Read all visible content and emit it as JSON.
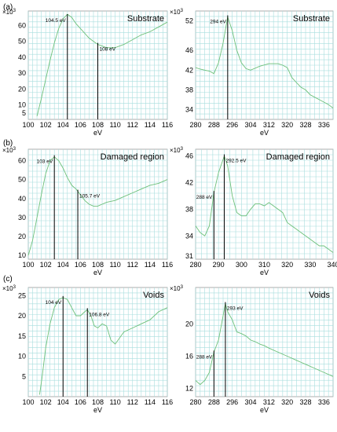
{
  "rows": [
    {
      "label": "(a)"
    },
    {
      "label": "(b)"
    },
    {
      "label": "(c)"
    }
  ],
  "chart_data": [
    {
      "type": "line",
      "row": 0,
      "col": 0,
      "title": "Substrate",
      "xlabel": "eV",
      "multiplier": "×10",
      "mult_exp": "3",
      "xlim": [
        100,
        116
      ],
      "ylim": [
        1,
        69
      ],
      "xticks": [
        100,
        102,
        104,
        106,
        108,
        110,
        112,
        114,
        116
      ],
      "yticks": [
        5,
        10,
        20,
        30,
        40,
        50,
        60
      ],
      "series": [
        {
          "x": [
            101.0,
            101.5,
            102.0,
            102.5,
            103.0,
            103.5,
            104.0,
            104.5,
            105.0,
            105.5,
            106.0,
            106.5,
            107.0,
            107.5,
            108.0,
            108.5,
            109.0,
            109.5,
            110.0,
            111.0,
            112.0,
            113.0,
            114.0,
            115.0,
            116.0
          ],
          "y": [
            3,
            14,
            26,
            38,
            49,
            58,
            64,
            67,
            65,
            61,
            58,
            55,
            52,
            50,
            48,
            47,
            46,
            46,
            46,
            48,
            51,
            54,
            56,
            59,
            62
          ]
        }
      ],
      "annotations": [
        {
          "x": 104.5,
          "label": "104.5 eV"
        },
        {
          "x": 108.0,
          "label": "108 eV"
        }
      ]
    },
    {
      "type": "line",
      "row": 0,
      "col": 1,
      "title": "Substrate",
      "xlabel": "eV",
      "multiplier": "×10",
      "mult_exp": "3",
      "xlim": [
        280,
        340
      ],
      "ylim": [
        32,
        54
      ],
      "xticks": [
        280,
        288,
        296,
        304,
        312,
        320,
        328,
        336
      ],
      "yticks": [
        34,
        38,
        42,
        46,
        52
      ],
      "series": [
        {
          "x": [
            280,
            282,
            284,
            286,
            288,
            290,
            292,
            294,
            296,
            298,
            300,
            302,
            304,
            308,
            312,
            316,
            318,
            320,
            322,
            324,
            326,
            328,
            330,
            332,
            334,
            336,
            338,
            340
          ],
          "y": [
            42.5,
            42.2,
            42.0,
            41.8,
            41.3,
            43.5,
            47.5,
            52.8,
            50.0,
            46.0,
            43.5,
            42.3,
            42.0,
            42.8,
            43.3,
            43.3,
            43.0,
            42.5,
            40.5,
            39.5,
            38.5,
            38.0,
            37.0,
            36.5,
            36.0,
            35.5,
            35.0,
            34.3
          ]
        }
      ],
      "annotations": [
        {
          "x": 294,
          "label": "294 eV"
        }
      ]
    },
    {
      "type": "line",
      "row": 1,
      "col": 0,
      "title": "Damaged region",
      "xlabel": "eV",
      "multiplier": "×10",
      "mult_exp": "3",
      "xlim": [
        100,
        116
      ],
      "ylim": [
        8,
        66
      ],
      "xticks": [
        100,
        102,
        104,
        106,
        108,
        110,
        112,
        114,
        116
      ],
      "yticks": [
        10,
        20,
        30,
        40,
        50,
        60
      ],
      "series": [
        {
          "x": [
            100.0,
            100.5,
            101.0,
            101.5,
            102.0,
            102.5,
            103.0,
            103.5,
            104.0,
            104.5,
            105.0,
            105.5,
            106.0,
            106.5,
            107.0,
            107.5,
            108.0,
            108.5,
            109.0,
            110.0,
            111.0,
            112.0,
            113.0,
            114.0,
            115.0,
            116.0
          ],
          "y": [
            10,
            18,
            30,
            42,
            53,
            60,
            62,
            60,
            56,
            51,
            47,
            45,
            42,
            39,
            37,
            36,
            36,
            37,
            38,
            39,
            41,
            43,
            45,
            47,
            48,
            50
          ]
        }
      ],
      "annotations": [
        {
          "x": 103.0,
          "label": "103 eV"
        },
        {
          "x": 105.7,
          "label": "105.7 eV"
        }
      ]
    },
    {
      "type": "line",
      "row": 1,
      "col": 1,
      "title": "Damaged region",
      "xlabel": "eV",
      "multiplier": "×10",
      "mult_exp": "3",
      "xlim": [
        280,
        340
      ],
      "ylim": [
        30.5,
        47
      ],
      "xticks": [
        280,
        290,
        300,
        310,
        320,
        330,
        340
      ],
      "yticks": [
        31,
        34,
        38,
        42,
        46
      ],
      "series": [
        {
          "x": [
            280,
            282,
            284,
            286,
            288,
            290,
            292.5,
            294,
            296,
            298,
            300,
            302,
            304,
            306,
            308,
            310,
            312,
            314,
            316,
            318,
            320,
            322,
            324,
            326,
            328,
            330,
            332,
            334,
            336,
            338,
            340
          ],
          "y": [
            35.5,
            34.5,
            34.0,
            35.5,
            40.5,
            43.5,
            46.0,
            44.5,
            40.0,
            37.5,
            37.0,
            37.0,
            38.0,
            38.8,
            38.8,
            38.5,
            39.0,
            38.5,
            38.0,
            37.5,
            36.0,
            35.5,
            35.0,
            34.5,
            34.0,
            33.5,
            33.0,
            32.5,
            32.5,
            32.0,
            31.5
          ]
        }
      ],
      "annotations": [
        {
          "x": 288,
          "label": "288 eV"
        },
        {
          "x": 292.5,
          "label": "292.5 eV"
        }
      ]
    },
    {
      "type": "line",
      "row": 2,
      "col": 0,
      "title": "Voids",
      "xlabel": "eV",
      "multiplier": "×10",
      "mult_exp": "3",
      "xlim": [
        100,
        116
      ],
      "ylim": [
        0,
        27
      ],
      "xticks": [
        100,
        102,
        104,
        106,
        108,
        110,
        112,
        114,
        116
      ],
      "yticks": [
        5,
        10,
        15,
        20,
        25
      ],
      "series": [
        {
          "x": [
            101.3,
            101.6,
            102.0,
            102.5,
            103.0,
            103.5,
            104.0,
            104.5,
            105.0,
            105.5,
            106.0,
            106.5,
            106.8,
            107.2,
            107.6,
            108.0,
            108.5,
            109.0,
            109.5,
            110.0,
            111.0,
            112.0,
            113.0,
            114.0,
            115.0,
            116.0
          ],
          "y": [
            0.5,
            5,
            12,
            18,
            22,
            24,
            24.5,
            24,
            22,
            20,
            20,
            21,
            21.5,
            20,
            17.5,
            17,
            18,
            17.5,
            14,
            13,
            16,
            17,
            18,
            19,
            21,
            22
          ]
        }
      ],
      "annotations": [
        {
          "x": 104.0,
          "label": "104 eV"
        },
        {
          "x": 106.8,
          "label": "106.8 eV"
        }
      ]
    },
    {
      "type": "line",
      "row": 2,
      "col": 1,
      "title": "Voids",
      "xlabel": "eV",
      "multiplier": "×10",
      "mult_exp": "3",
      "xlim": [
        280,
        340
      ],
      "ylim": [
        11,
        24.5
      ],
      "xticks": [
        280,
        288,
        296,
        304,
        312,
        320,
        328,
        336
      ],
      "yticks": [
        12,
        16,
        20
      ],
      "series": [
        {
          "x": [
            280,
            282,
            284,
            286,
            288,
            290,
            292,
            293,
            294,
            296,
            298,
            300,
            302,
            304,
            306,
            308,
            310,
            312,
            316,
            320,
            324,
            328,
            332,
            336,
            340
          ],
          "y": [
            13.0,
            12.5,
            13.0,
            14.0,
            16.5,
            18.0,
            21.0,
            22.5,
            21.5,
            20.5,
            19.0,
            18.8,
            18.5,
            18.0,
            17.8,
            17.5,
            17.3,
            17.0,
            16.5,
            16.0,
            15.5,
            15.0,
            14.5,
            14.0,
            13.5
          ]
        }
      ],
      "annotations": [
        {
          "x": 288,
          "label": "288 eV"
        },
        {
          "x": 293,
          "label": "293 eV"
        }
      ]
    }
  ]
}
